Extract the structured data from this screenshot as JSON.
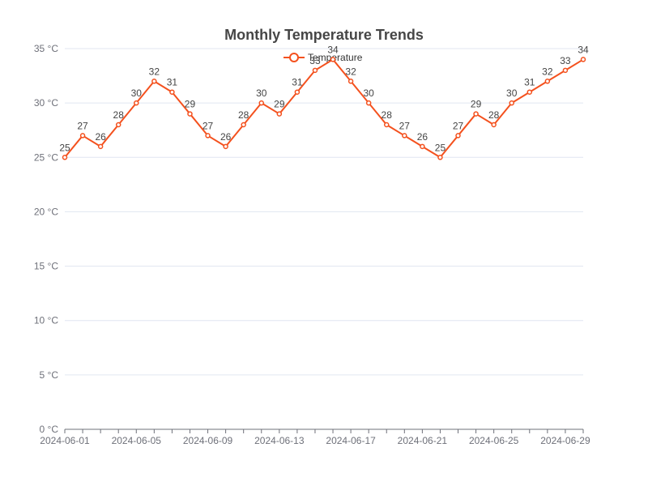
{
  "chart_data": {
    "type": "line",
    "title": "Monthly Temperature Trends",
    "xlabel": "",
    "ylabel": "",
    "y_unit": "°C",
    "ylim": [
      0,
      35
    ],
    "yticks": [
      0,
      5,
      10,
      15,
      20,
      25,
      30,
      35
    ],
    "x_tick_labels": [
      "2024-06-01",
      "2024-06-05",
      "2024-06-09",
      "2024-06-13",
      "2024-06-17",
      "2024-06-21",
      "2024-06-25",
      "2024-06-29"
    ],
    "grid": true,
    "legend_position": "top-center",
    "series": [
      {
        "name": "Temperature",
        "color": "#f4511e",
        "x": [
          "2024-06-01",
          "2024-06-02",
          "2024-06-03",
          "2024-06-04",
          "2024-06-05",
          "2024-06-06",
          "2024-06-07",
          "2024-06-08",
          "2024-06-09",
          "2024-06-10",
          "2024-06-11",
          "2024-06-12",
          "2024-06-13",
          "2024-06-14",
          "2024-06-15",
          "2024-06-16",
          "2024-06-17",
          "2024-06-18",
          "2024-06-19",
          "2024-06-20",
          "2024-06-21",
          "2024-06-22",
          "2024-06-23",
          "2024-06-24",
          "2024-06-25",
          "2024-06-26",
          "2024-06-27",
          "2024-06-28",
          "2024-06-29",
          "2024-06-30"
        ],
        "values": [
          25,
          27,
          26,
          28,
          30,
          32,
          31,
          29,
          27,
          26,
          28,
          30,
          29,
          31,
          33,
          34,
          32,
          30,
          28,
          27,
          26,
          25,
          27,
          29,
          28,
          30,
          31,
          32,
          33,
          34
        ]
      }
    ]
  }
}
